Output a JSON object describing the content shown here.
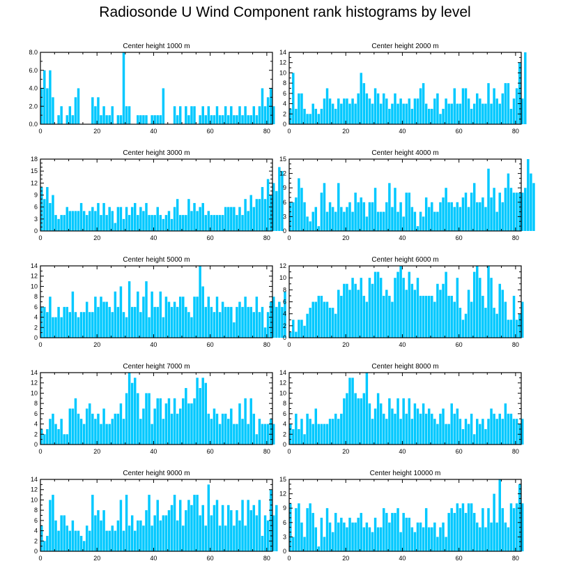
{
  "title": "Radiosonde U Wind Component rank histograms by level",
  "bar_color": "#00C8FF",
  "chart_data": [
    {
      "type": "bar",
      "title": "Center height 1000 m",
      "xlabel": "",
      "ylabel": "",
      "xlim": [
        0,
        82
      ],
      "ylim": [
        0,
        8
      ],
      "xticks": [
        0,
        20,
        40,
        60,
        80
      ],
      "yticks": [
        0,
        2,
        4,
        6,
        8
      ],
      "ytick_labels": [
        "0.0",
        "2.0",
        "4.0",
        "6.0",
        "8.0"
      ],
      "x_start": 0,
      "values": [
        4,
        6,
        4,
        6,
        3,
        0,
        1,
        2,
        0,
        1,
        2,
        1,
        3,
        4,
        0,
        0,
        0,
        0,
        3,
        2,
        3,
        1,
        2,
        1,
        1,
        2,
        0,
        1,
        1,
        8,
        2,
        2,
        0,
        0,
        1,
        1,
        1,
        1,
        0,
        1,
        1,
        1,
        1,
        4,
        0,
        0,
        0,
        2,
        1,
        2,
        0,
        2,
        1,
        2,
        2,
        0,
        1,
        2,
        1,
        2,
        1,
        1,
        2,
        1,
        1,
        2,
        1,
        2,
        1,
        1,
        2,
        1,
        2,
        1,
        1,
        2,
        1,
        2,
        4,
        2,
        3,
        4,
        2
      ]
    },
    {
      "type": "bar",
      "title": "Center height 2000 m",
      "xlabel": "",
      "ylabel": "",
      "xlim": [
        0,
        82
      ],
      "ylim": [
        0,
        14
      ],
      "xticks": [
        0,
        20,
        40,
        60,
        80
      ],
      "yticks": [
        0,
        2,
        4,
        6,
        8,
        10,
        12,
        14
      ],
      "ytick_labels": [
        "0",
        "2",
        "4",
        "6",
        "8",
        "10",
        "12",
        "14"
      ],
      "x_start": 0,
      "values": [
        3,
        10,
        3,
        6,
        6,
        3,
        2,
        2,
        4,
        3,
        2,
        3,
        5,
        7,
        5,
        4,
        3,
        5,
        4,
        5,
        5,
        4,
        5,
        4,
        6,
        10,
        8,
        6,
        5,
        4,
        7,
        6,
        4,
        6,
        5,
        3,
        4,
        6,
        4,
        5,
        4,
        4,
        5,
        3,
        5,
        5,
        7,
        8,
        4,
        3,
        3,
        5,
        6,
        2,
        3,
        5,
        4,
        4,
        7,
        4,
        4,
        7,
        7,
        5,
        3,
        4,
        6,
        5,
        4,
        4,
        8,
        4,
        7,
        5,
        4,
        6,
        8,
        8,
        3,
        5,
        7,
        12,
        5,
        14
      ]
    },
    {
      "type": "bar",
      "title": "Center height 3000 m",
      "xlabel": "",
      "ylabel": "",
      "xlim": [
        0,
        82
      ],
      "ylim": [
        0,
        18
      ],
      "xticks": [
        0,
        20,
        40,
        60,
        80
      ],
      "yticks": [
        0,
        3,
        6,
        9,
        12,
        15,
        18
      ],
      "ytick_labels": [
        "0",
        "3",
        "6",
        "9",
        "12",
        "15",
        "18"
      ],
      "x_start": 0,
      "values": [
        11,
        8,
        11,
        7,
        9,
        4,
        3,
        4,
        4,
        6,
        5,
        5,
        5,
        5,
        7,
        5,
        4,
        5,
        6,
        5,
        7,
        4,
        7,
        4,
        6,
        5,
        2,
        6,
        6,
        3,
        6,
        4,
        6,
        7,
        4,
        6,
        5,
        7,
        4,
        4,
        4,
        6,
        4,
        3,
        4,
        5,
        3,
        6,
        8,
        4,
        4,
        4,
        8,
        5,
        7,
        5,
        6,
        7,
        4,
        5,
        4,
        4,
        4,
        4,
        4,
        6,
        6,
        6,
        6,
        4,
        6,
        4,
        8,
        5,
        9,
        6,
        8,
        8,
        11,
        8,
        13,
        9,
        12,
        10,
        16,
        15
      ]
    },
    {
      "type": "bar",
      "title": "Center height 4000 m",
      "xlabel": "",
      "ylabel": "",
      "xlim": [
        0,
        82
      ],
      "ylim": [
        0,
        15
      ],
      "xticks": [
        0,
        20,
        40,
        60,
        80
      ],
      "yticks": [
        0,
        3,
        6,
        9,
        12,
        15
      ],
      "ytick_labels": [
        "0",
        "3",
        "6",
        "9",
        "12",
        "15"
      ],
      "x_start": 0,
      "values": [
        6,
        6,
        7,
        11,
        9,
        6,
        3,
        2,
        4,
        5,
        1,
        8,
        10,
        4,
        6,
        5,
        4,
        10,
        5,
        4,
        5,
        6,
        4,
        8,
        6,
        7,
        6,
        3,
        6,
        6,
        9,
        4,
        4,
        4,
        6,
        10,
        5,
        9,
        4,
        6,
        3,
        8,
        8,
        5,
        4,
        1,
        4,
        3,
        7,
        5,
        6,
        4,
        4,
        6,
        7,
        9,
        6,
        6,
        5,
        6,
        5,
        7,
        8,
        5,
        8,
        10,
        6,
        6,
        7,
        5,
        13,
        7,
        9,
        4,
        8,
        6,
        9,
        12,
        9,
        8,
        8,
        8,
        8,
        9,
        15,
        12,
        10
      ]
    },
    {
      "type": "bar",
      "title": "Center height 5000 m",
      "xlabel": "",
      "ylabel": "",
      "xlim": [
        0,
        82
      ],
      "ylim": [
        0,
        14
      ],
      "xticks": [
        0,
        20,
        40,
        60,
        80
      ],
      "yticks": [
        0,
        2,
        4,
        6,
        8,
        10,
        12,
        14
      ],
      "ytick_labels": [
        "0",
        "2",
        "4",
        "6",
        "8",
        "10",
        "12",
        "14"
      ],
      "x_start": 0,
      "values": [
        6,
        6,
        5,
        8,
        4,
        4,
        6,
        4,
        6,
        6,
        5,
        9,
        5,
        4,
        5,
        5,
        7,
        5,
        5,
        8,
        6,
        8,
        7,
        7,
        6,
        5,
        9,
        6,
        10,
        5,
        4,
        11,
        6,
        6,
        9,
        5,
        8,
        11,
        4,
        9,
        6,
        6,
        9,
        4,
        8,
        7,
        6,
        7,
        6,
        8,
        8,
        6,
        5,
        4,
        8,
        8,
        14,
        10,
        6,
        8,
        6,
        5,
        8,
        5,
        7,
        6,
        6,
        6,
        3,
        6,
        7,
        6,
        8,
        6,
        6,
        5,
        8,
        5,
        6,
        2,
        5,
        7,
        8,
        6,
        7,
        6,
        9
      ]
    },
    {
      "type": "bar",
      "title": "Center height 6000 m",
      "xlabel": "",
      "ylabel": "",
      "xlim": [
        0,
        82
      ],
      "ylim": [
        0,
        12
      ],
      "xticks": [
        0,
        20,
        40,
        60,
        80
      ],
      "yticks": [
        0,
        2,
        4,
        6,
        8,
        10,
        12
      ],
      "ytick_labels": [
        "0",
        "2",
        "4",
        "6",
        "8",
        "10",
        "12"
      ],
      "x_start": 0,
      "values": [
        1,
        3,
        1,
        3,
        3,
        2,
        4,
        5,
        6,
        6,
        7,
        7,
        6,
        6,
        5,
        5,
        4,
        8,
        7,
        9,
        9,
        8,
        10,
        9,
        8,
        10,
        7,
        6,
        10,
        9,
        11,
        11,
        10,
        7,
        8,
        7,
        6,
        10,
        11,
        12,
        10,
        8,
        11,
        9,
        8,
        10,
        7,
        7,
        7,
        7,
        7,
        6,
        9,
        8,
        9,
        11,
        7,
        7,
        6,
        10,
        5,
        3,
        4,
        8,
        6,
        11,
        12,
        10,
        7,
        5,
        12,
        10,
        5,
        4,
        9,
        8,
        6,
        3,
        3,
        7,
        3,
        4,
        6
      ]
    },
    {
      "type": "bar",
      "title": "Center height 7000 m",
      "xlabel": "",
      "ylabel": "",
      "xlim": [
        0,
        82
      ],
      "ylim": [
        0,
        14
      ],
      "xticks": [
        0,
        20,
        40,
        60,
        80
      ],
      "yticks": [
        0,
        2,
        4,
        6,
        8,
        10,
        12,
        14
      ],
      "ytick_labels": [
        "0",
        "2",
        "4",
        "6",
        "8",
        "10",
        "12",
        "14"
      ],
      "x_start": 0,
      "values": [
        3,
        2,
        3,
        5,
        6,
        4,
        3,
        5,
        2,
        2,
        7,
        7,
        9,
        6,
        5,
        4,
        7,
        8,
        6,
        5,
        6,
        4,
        7,
        4,
        4,
        5,
        6,
        6,
        8,
        5,
        10,
        14,
        12,
        13,
        10,
        5,
        7,
        10,
        10,
        4,
        7,
        9,
        9,
        5,
        8,
        9,
        6,
        9,
        6,
        7,
        9,
        11,
        8,
        8,
        9,
        13,
        11,
        13,
        12,
        6,
        5,
        7,
        6,
        4,
        6,
        6,
        5,
        7,
        4,
        4,
        8,
        5,
        9,
        4,
        9,
        6,
        2,
        5,
        4,
        4,
        4,
        5,
        4
      ]
    },
    {
      "type": "bar",
      "title": "Center height 8000 m",
      "xlabel": "",
      "ylabel": "",
      "xlim": [
        0,
        82
      ],
      "ylim": [
        0,
        14
      ],
      "xticks": [
        0,
        20,
        40,
        60,
        80
      ],
      "yticks": [
        0,
        2,
        4,
        6,
        8,
        10,
        12,
        14
      ],
      "ytick_labels": [
        "0",
        "2",
        "4",
        "6",
        "8",
        "10",
        "12",
        "14"
      ],
      "x_start": 0,
      "values": [
        4,
        3,
        6,
        3,
        5,
        2,
        6,
        5,
        4,
        7,
        4,
        4,
        4,
        4,
        5,
        5,
        6,
        5,
        6,
        9,
        10,
        13,
        13,
        10,
        9,
        9,
        10,
        14,
        8,
        5,
        7,
        10,
        8,
        6,
        5,
        9,
        7,
        6,
        9,
        5,
        9,
        6,
        9,
        5,
        8,
        7,
        6,
        8,
        6,
        7,
        6,
        5,
        4,
        6,
        7,
        4,
        4,
        8,
        6,
        7,
        5,
        3,
        5,
        4,
        6,
        2,
        5,
        4,
        5,
        3,
        5,
        7,
        6,
        5,
        6,
        5,
        8,
        6,
        6,
        5,
        5,
        4,
        5
      ]
    },
    {
      "type": "bar",
      "title": "Center height 9000 m",
      "xlabel": "",
      "ylabel": "",
      "xlim": [
        0,
        82
      ],
      "ylim": [
        0,
        14
      ],
      "xticks": [
        0,
        20,
        40,
        60,
        80
      ],
      "yticks": [
        0,
        2,
        4,
        6,
        8,
        10,
        12,
        14
      ],
      "ytick_labels": [
        "0",
        "2",
        "4",
        "6",
        "8",
        "10",
        "12",
        "14"
      ],
      "x_start": 0,
      "values": [
        5,
        2,
        3,
        10,
        11,
        6,
        4,
        7,
        7,
        5,
        4,
        6,
        4,
        4,
        3,
        2,
        5,
        4,
        11,
        7,
        8,
        6,
        8,
        4,
        4,
        5,
        4,
        6,
        10,
        4,
        11,
        5,
        7,
        4,
        6,
        6,
        5,
        8,
        11,
        5,
        7,
        10,
        6,
        7,
        7,
        8,
        9,
        11,
        6,
        10,
        5,
        8,
        10,
        9,
        11,
        11,
        7,
        9,
        5,
        13,
        7,
        9,
        10,
        5,
        9,
        5,
        9,
        8,
        5,
        8,
        6,
        10,
        5,
        10,
        8,
        9,
        7,
        10,
        3,
        7,
        6,
        12,
        7,
        9
      ]
    },
    {
      "type": "bar",
      "title": "Center height 10000 m",
      "xlabel": "",
      "ylabel": "",
      "xlim": [
        0,
        82
      ],
      "ylim": [
        0,
        15
      ],
      "xticks": [
        0,
        20,
        40,
        60,
        80
      ],
      "yticks": [
        0,
        3,
        6,
        9,
        12,
        15
      ],
      "ytick_labels": [
        "0",
        "3",
        "6",
        "9",
        "12",
        "15"
      ],
      "x_start": 0,
      "values": [
        10,
        3,
        9,
        10,
        6,
        3,
        9,
        10,
        8,
        5,
        1,
        7,
        3,
        9,
        6,
        4,
        8,
        6,
        7,
        6,
        5,
        7,
        6,
        6,
        7,
        8,
        5,
        6,
        5,
        4,
        7,
        5,
        5,
        9,
        8,
        6,
        8,
        8,
        9,
        4,
        8,
        7,
        7,
        5,
        4,
        6,
        6,
        5,
        9,
        5,
        5,
        6,
        3,
        5,
        6,
        3,
        8,
        9,
        8,
        10,
        9,
        10,
        8,
        10,
        10,
        8,
        6,
        5,
        9,
        5,
        9,
        6,
        12,
        6,
        15,
        9,
        6,
        5,
        10,
        9,
        10,
        14,
        10
      ]
    }
  ]
}
